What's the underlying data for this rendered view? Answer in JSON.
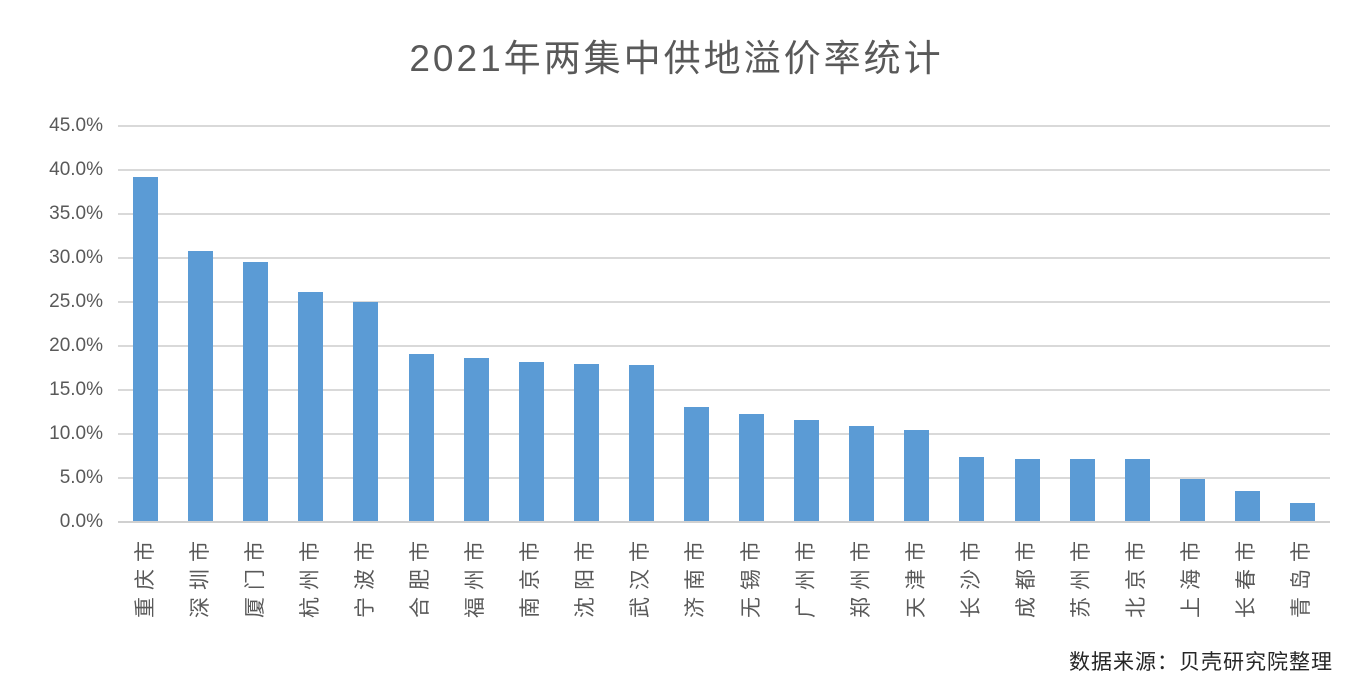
{
  "title": "2021年两集中供地溢价率统计",
  "source_note": "数据来源：贝壳研究院整理",
  "chart_data": {
    "type": "bar",
    "title": "2021年两集中供地溢价率统计",
    "categories": [
      "重庆市",
      "深圳市",
      "厦门市",
      "杭州市",
      "宁波市",
      "合肥市",
      "福州市",
      "南京市",
      "沈阳市",
      "武汉市",
      "济南市",
      "无锡市",
      "广州市",
      "郑州市",
      "天津市",
      "长沙市",
      "成都市",
      "苏州市",
      "北京市",
      "上海市",
      "长春市",
      "青岛市"
    ],
    "values": [
      39.1,
      30.7,
      29.4,
      26.0,
      24.9,
      19.0,
      18.5,
      18.1,
      17.8,
      17.7,
      12.9,
      12.2,
      11.5,
      10.8,
      10.3,
      7.3,
      7.1,
      7.1,
      7.1,
      4.8,
      3.4,
      2.0
    ],
    "value_unit": "%",
    "xlabel": "",
    "ylabel": "",
    "ylim": [
      0,
      45
    ],
    "ytick_step": 5,
    "ytick_labels": [
      "45.0%",
      "40.0%",
      "35.0%",
      "30.0%",
      "25.0%",
      "20.0%",
      "15.0%",
      "10.0%",
      "5.0%",
      "0.0%"
    ],
    "grid": true,
    "legend": false,
    "bar_color": "#5b9bd5",
    "gridline_color": "#d9d9d9",
    "text_color": "#595959",
    "x_label_rotation": -90,
    "annotation": "数据来源：贝壳研究院整理"
  }
}
